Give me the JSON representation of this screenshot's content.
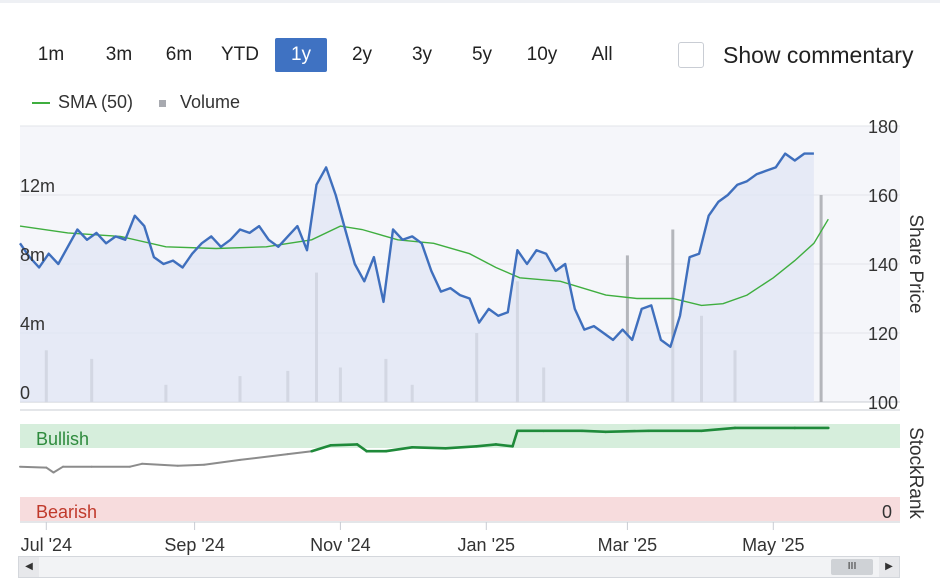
{
  "range_buttons": [
    "1m",
    "3m",
    "6m",
    "YTD",
    "1y",
    "2y",
    "3y",
    "5y",
    "10y",
    "All"
  ],
  "active_range": "1y",
  "show_commentary": {
    "label": "Show commentary",
    "checked": false
  },
  "legend": {
    "sma": "SMA (50)",
    "volume": "Volume"
  },
  "colors": {
    "price": "#3f6fbd",
    "sma": "#3fae3f",
    "volume": "#b4b6bb",
    "stockrank_green": "#1f8a3a",
    "stockrank_grey": "#8c8c8c",
    "bullish_band": "#d6eedc",
    "bearish_band": "#f7dcdd",
    "bearish_text": "#c0392b",
    "bullish_text": "#2e8b3d",
    "active_button": "#3f72c2"
  },
  "chart_data": {
    "type": "line",
    "price_axis": {
      "title": "Share Price",
      "ylim": [
        100,
        180
      ],
      "ticks": [
        100,
        120,
        140,
        160,
        180
      ]
    },
    "volume_axis": {
      "ylim": [
        0,
        16000000
      ],
      "tick_labels": [
        "0",
        "4m",
        "8m",
        "12m"
      ],
      "tick_values": [
        0,
        4000000,
        8000000,
        12000000
      ]
    },
    "xlim": [
      "2024-06-20",
      "2025-06-23"
    ],
    "x_ticks": [
      {
        "date": "2024-07-01",
        "label": "Jul '24"
      },
      {
        "date": "2024-09-01",
        "label": "Sep '24"
      },
      {
        "date": "2024-11-01",
        "label": "Nov '24"
      },
      {
        "date": "2025-01-01",
        "label": "Jan '25"
      },
      {
        "date": "2025-03-01",
        "label": "Mar '25"
      },
      {
        "date": "2025-05-01",
        "label": "May '25"
      }
    ],
    "series": [
      {
        "name": "Share Price",
        "points": [
          [
            "2024-06-20",
            146
          ],
          [
            "2024-06-24",
            142
          ],
          [
            "2024-06-28",
            139
          ],
          [
            "2024-07-02",
            143
          ],
          [
            "2024-07-06",
            140
          ],
          [
            "2024-07-10",
            145
          ],
          [
            "2024-07-14",
            150
          ],
          [
            "2024-07-18",
            147
          ],
          [
            "2024-07-22",
            149
          ],
          [
            "2024-07-26",
            146
          ],
          [
            "2024-07-30",
            148
          ],
          [
            "2024-08-03",
            147
          ],
          [
            "2024-08-07",
            154
          ],
          [
            "2024-08-11",
            151
          ],
          [
            "2024-08-15",
            142
          ],
          [
            "2024-08-19",
            140
          ],
          [
            "2024-08-23",
            141
          ],
          [
            "2024-08-27",
            139
          ],
          [
            "2024-08-31",
            143
          ],
          [
            "2024-09-04",
            146
          ],
          [
            "2024-09-08",
            148
          ],
          [
            "2024-09-12",
            145
          ],
          [
            "2024-09-16",
            147
          ],
          [
            "2024-09-20",
            150
          ],
          [
            "2024-09-24",
            149
          ],
          [
            "2024-09-28",
            151
          ],
          [
            "2024-10-02",
            147
          ],
          [
            "2024-10-06",
            145
          ],
          [
            "2024-10-10",
            148
          ],
          [
            "2024-10-14",
            151
          ],
          [
            "2024-10-18",
            144
          ],
          [
            "2024-10-22",
            163
          ],
          [
            "2024-10-26",
            168
          ],
          [
            "2024-10-30",
            160
          ],
          [
            "2024-11-03",
            150
          ],
          [
            "2024-11-07",
            140
          ],
          [
            "2024-11-11",
            135
          ],
          [
            "2024-11-15",
            142
          ],
          [
            "2024-11-19",
            129
          ],
          [
            "2024-11-23",
            150
          ],
          [
            "2024-11-27",
            147
          ],
          [
            "2024-12-01",
            148
          ],
          [
            "2024-12-05",
            146
          ],
          [
            "2024-12-09",
            138
          ],
          [
            "2024-12-13",
            132
          ],
          [
            "2024-12-17",
            133
          ],
          [
            "2024-12-21",
            131
          ],
          [
            "2024-12-25",
            130
          ],
          [
            "2024-12-29",
            123
          ],
          [
            "2025-01-02",
            127
          ],
          [
            "2025-01-06",
            125
          ],
          [
            "2025-01-10",
            126
          ],
          [
            "2025-01-14",
            144
          ],
          [
            "2025-01-18",
            140
          ],
          [
            "2025-01-22",
            144
          ],
          [
            "2025-01-26",
            143
          ],
          [
            "2025-01-30",
            138
          ],
          [
            "2025-02-03",
            140
          ],
          [
            "2025-02-07",
            127
          ],
          [
            "2025-02-11",
            121
          ],
          [
            "2025-02-15",
            122
          ],
          [
            "2025-02-19",
            120
          ],
          [
            "2025-02-23",
            118
          ],
          [
            "2025-02-27",
            121
          ],
          [
            "2025-03-03",
            118
          ],
          [
            "2025-03-07",
            127
          ],
          [
            "2025-03-11",
            128
          ],
          [
            "2025-03-15",
            118
          ],
          [
            "2025-03-19",
            116
          ],
          [
            "2025-03-23",
            125
          ],
          [
            "2025-03-27",
            142
          ],
          [
            "2025-03-31",
            143
          ],
          [
            "2025-04-04",
            154
          ],
          [
            "2025-04-08",
            158
          ],
          [
            "2025-04-12",
            160
          ],
          [
            "2025-04-16",
            163
          ],
          [
            "2025-04-20",
            164
          ],
          [
            "2025-04-24",
            166
          ],
          [
            "2025-04-28",
            167
          ],
          [
            "2025-05-02",
            168
          ],
          [
            "2025-05-06",
            172
          ],
          [
            "2025-05-10",
            170
          ],
          [
            "2025-05-14",
            172
          ],
          [
            "2025-05-18",
            172
          ]
        ]
      },
      {
        "name": "SMA (50)",
        "points": [
          [
            "2024-06-20",
            151
          ],
          [
            "2024-07-10",
            149
          ],
          [
            "2024-08-01",
            148
          ],
          [
            "2024-08-20",
            145
          ],
          [
            "2024-09-10",
            144.5
          ],
          [
            "2024-10-01",
            145
          ],
          [
            "2024-10-20",
            147
          ],
          [
            "2024-11-01",
            151
          ],
          [
            "2024-11-10",
            150
          ],
          [
            "2024-11-25",
            147
          ],
          [
            "2024-12-10",
            146
          ],
          [
            "2024-12-25",
            143
          ],
          [
            "2025-01-05",
            139
          ],
          [
            "2025-01-15",
            136
          ],
          [
            "2025-02-01",
            135
          ],
          [
            "2025-02-20",
            131
          ],
          [
            "2025-03-05",
            130
          ],
          [
            "2025-03-20",
            130
          ],
          [
            "2025-04-01",
            128
          ],
          [
            "2025-04-10",
            128.5
          ],
          [
            "2025-04-20",
            131
          ],
          [
            "2025-05-01",
            136
          ],
          [
            "2025-05-10",
            141
          ],
          [
            "2025-05-18",
            146
          ],
          [
            "2025-05-24",
            153
          ]
        ]
      },
      {
        "name": "Volume",
        "points": [
          [
            "2024-07-01",
            3000000
          ],
          [
            "2024-07-20",
            2500000
          ],
          [
            "2024-08-20",
            1000000
          ],
          [
            "2024-09-20",
            1500000
          ],
          [
            "2024-10-10",
            1800000
          ],
          [
            "2024-10-22",
            7500000
          ],
          [
            "2024-11-01",
            2000000
          ],
          [
            "2024-11-20",
            2500000
          ],
          [
            "2024-12-01",
            1000000
          ],
          [
            "2024-12-28",
            4000000
          ],
          [
            "2025-01-14",
            7000000
          ],
          [
            "2025-01-25",
            2000000
          ],
          [
            "2025-03-01",
            8500000
          ],
          [
            "2025-03-20",
            10000000
          ],
          [
            "2025-04-01",
            5000000
          ],
          [
            "2025-04-15",
            3000000
          ],
          [
            "2025-05-21",
            12000000
          ]
        ]
      }
    ],
    "stockrank": {
      "axis_title": "StockRank",
      "zones": [
        {
          "label": "Bullish",
          "range": [
            70,
            100
          ]
        },
        {
          "label": "Bearish",
          "range": [
            0,
            30
          ]
        }
      ],
      "scale_label_zero": "0",
      "points": [
        [
          "2024-06-20",
          56
        ],
        [
          "2024-07-01",
          55
        ],
        [
          "2024-07-04",
          50
        ],
        [
          "2024-07-08",
          56
        ],
        [
          "2024-07-20",
          56
        ],
        [
          "2024-08-05",
          56
        ],
        [
          "2024-08-10",
          59
        ],
        [
          "2024-08-25",
          57
        ],
        [
          "2024-09-05",
          58
        ],
        [
          "2024-09-20",
          63
        ],
        [
          "2024-10-10",
          69
        ],
        [
          "2024-10-20",
          72
        ],
        [
          "2024-10-28",
          78
        ],
        [
          "2024-11-08",
          79
        ],
        [
          "2024-11-12",
          72
        ],
        [
          "2024-11-20",
          72
        ],
        [
          "2024-12-01",
          76
        ],
        [
          "2024-12-15",
          75
        ],
        [
          "2024-12-28",
          77
        ],
        [
          "2025-01-05",
          79
        ],
        [
          "2025-01-12",
          77
        ],
        [
          "2025-01-14",
          93
        ],
        [
          "2025-01-25",
          93
        ],
        [
          "2025-02-10",
          93
        ],
        [
          "2025-02-20",
          92
        ],
        [
          "2025-03-10",
          93
        ],
        [
          "2025-04-01",
          93
        ],
        [
          "2025-04-15",
          96
        ],
        [
          "2025-05-10",
          96
        ],
        [
          "2025-05-24",
          96
        ]
      ]
    }
  }
}
